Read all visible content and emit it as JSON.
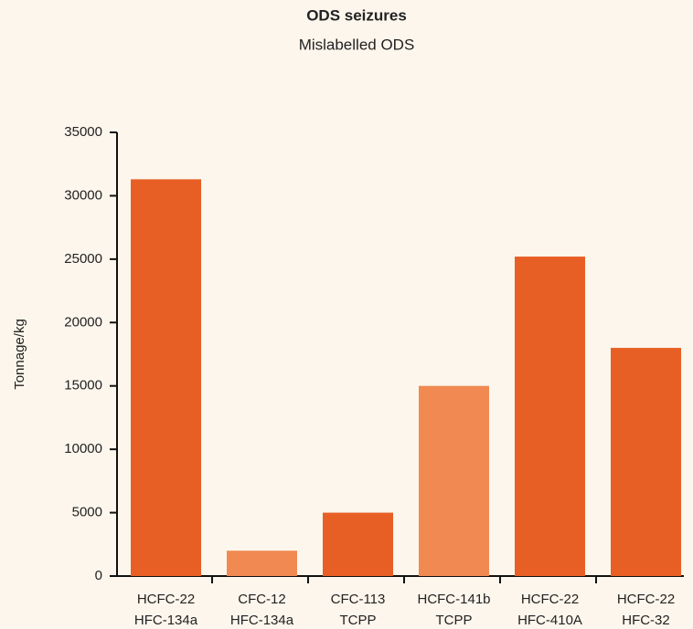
{
  "chart_data": {
    "type": "bar",
    "title": "ODS seizures",
    "subtitle": "Mislabelled ODS",
    "ylabel": "Tonnage/kg",
    "categories": [
      [
        "HCFC-22",
        "HFC-134a"
      ],
      [
        "CFC-12",
        "HFC-134a"
      ],
      [
        "CFC-113",
        "TCPP"
      ],
      [
        "HCFC-141b",
        "TCPP"
      ],
      [
        "HCFC-22",
        "HFC-410A"
      ],
      [
        "HCFC-22",
        "HFC-32"
      ]
    ],
    "values": [
      31300,
      2000,
      5000,
      15000,
      25200,
      18000
    ],
    "colors": [
      "#e85f25",
      "#f08a52",
      "#e85f25",
      "#f08a52",
      "#e85f25",
      "#e85f25"
    ],
    "ylim": [
      0,
      35000
    ],
    "yticks": [
      0,
      5000,
      10000,
      15000,
      20000,
      25000,
      30000,
      35000
    ],
    "grid": false
  }
}
